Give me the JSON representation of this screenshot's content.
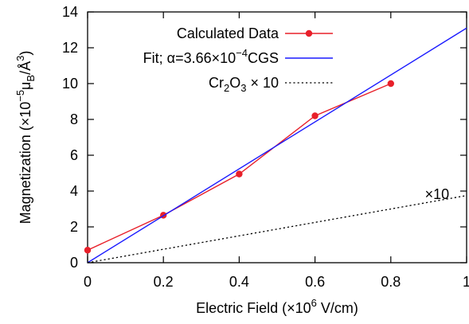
{
  "chart_data": {
    "type": "line",
    "title": "",
    "xlabel": {
      "prefix": "Electric Field (×10",
      "sup": "6",
      "suffix": " V/cm)"
    },
    "ylabel": {
      "prefix": "Magnetization (×10",
      "sup": "−5",
      "mid": "μ",
      "sub": "B",
      "suffix": "/Å",
      "sup2": "3",
      "end": ")"
    },
    "xlim": [
      0,
      1
    ],
    "ylim": [
      0,
      14
    ],
    "xticks": [
      "0",
      "0.2",
      "0.4",
      "0.6",
      "0.8",
      "1"
    ],
    "yticks": [
      "0",
      "2",
      "4",
      "6",
      "8",
      "10",
      "12",
      "14"
    ],
    "grid": false,
    "legend_position": "top-right",
    "series": [
      {
        "name": "Calculated Data",
        "style": "line+points",
        "color": "#e8202a",
        "x": [
          0,
          0.2,
          0.4,
          0.6,
          0.8
        ],
        "y": [
          0.7,
          2.65,
          4.95,
          8.2,
          10.0
        ]
      },
      {
        "name": {
          "prefix": "Fit; α=3.66×10",
          "sup": "−4",
          "suffix": "CGS"
        },
        "style": "line",
        "color": "#1a1aff",
        "x": [
          0,
          1
        ],
        "y": [
          0,
          13.1
        ]
      },
      {
        "name": {
          "base": "Cr",
          "sub1": "2",
          "mid": "O",
          "sub2": "3",
          "suffix": " × 10"
        },
        "style": "dotted",
        "color": "#000000",
        "x": [
          0,
          1
        ],
        "y": [
          0,
          3.75
        ]
      }
    ],
    "annotations": [
      {
        "text": "×10",
        "x": 0.89,
        "y": 3.55
      }
    ]
  }
}
